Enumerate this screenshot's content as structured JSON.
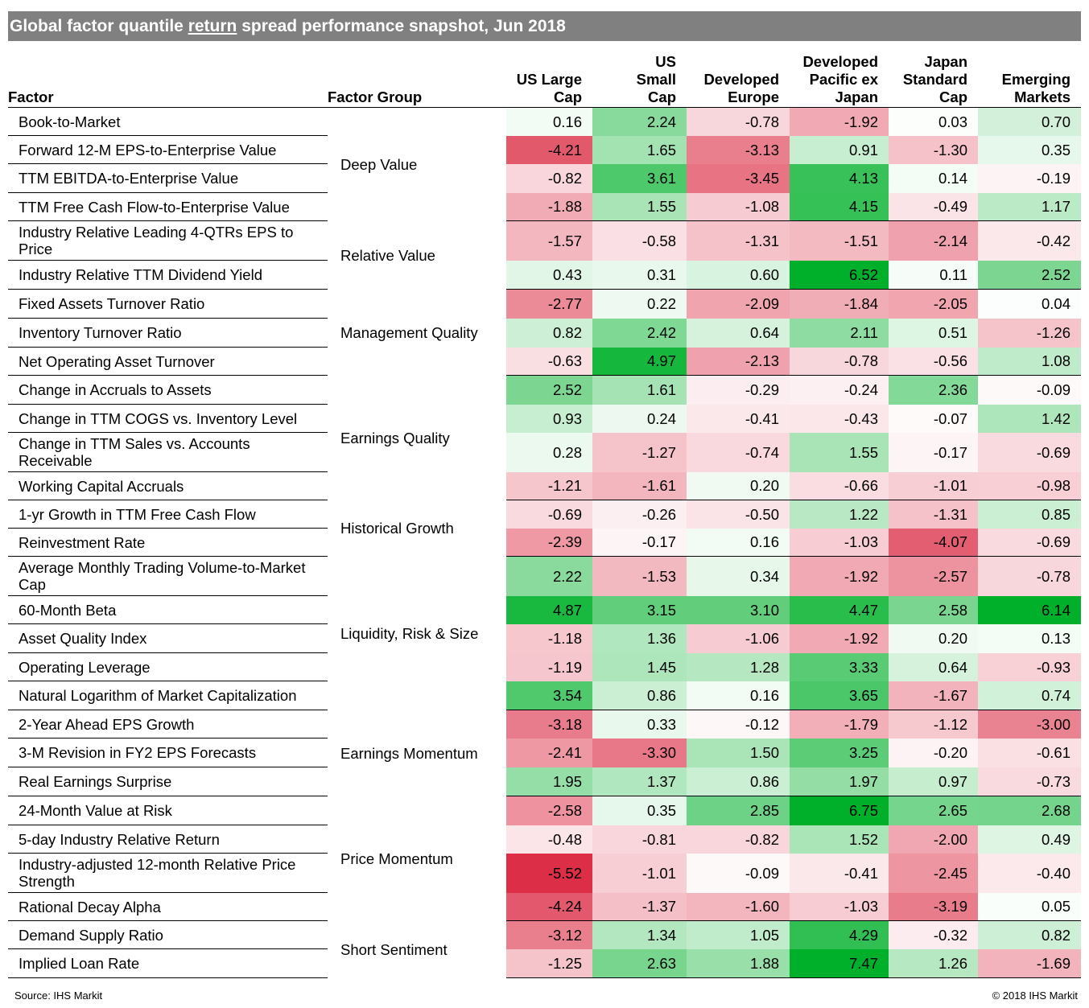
{
  "title": {
    "before": "Global factor quantile ",
    "underlined": "return",
    "after": " spread performance snapshot, Jun 2018"
  },
  "footer": {
    "source": "Source: IHS Markit",
    "copyright": "© 2018 IHS Markit"
  },
  "colors": {
    "negative_max": "#dc2f47",
    "neutral": "#ffffff",
    "positive_max": "#00b02a"
  },
  "chart_data": {
    "type": "table",
    "title": "Global factor quantile return spread performance snapshot, Jun 2018",
    "columns": [
      "Factor",
      "Factor Group",
      "US Large Cap",
      "US Small Cap",
      "Developed Europe",
      "Developed Pacific ex Japan",
      "Japan Standard Cap",
      "Emerging Markets"
    ],
    "markets": [
      "US Large Cap",
      "US Small Cap",
      "Developed Europe",
      "Developed Pacific ex Japan",
      "Japan Standard Cap",
      "Emerging Markets"
    ],
    "groups": [
      {
        "name": "Deep Value",
        "rows": [
          {
            "factor": "Book-to-Market",
            "values": [
              0.16,
              2.24,
              -0.78,
              -1.92,
              0.03,
              0.7
            ]
          },
          {
            "factor": "Forward 12-M EPS-to-Enterprise Value",
            "values": [
              -4.21,
              1.65,
              -3.13,
              0.91,
              -1.3,
              0.35
            ]
          },
          {
            "factor": "TTM EBITDA-to-Enterprise Value",
            "values": [
              -0.82,
              3.61,
              -3.45,
              4.13,
              0.14,
              -0.19
            ]
          },
          {
            "factor": "TTM Free Cash Flow-to-Enterprise Value",
            "values": [
              -1.88,
              1.55,
              -1.08,
              4.15,
              -0.49,
              1.17
            ]
          }
        ]
      },
      {
        "name": "Relative Value",
        "rows": [
          {
            "factor": "Industry Relative Leading 4-QTRs EPS to Price",
            "values": [
              -1.57,
              -0.58,
              -1.31,
              -1.51,
              -2.14,
              -0.42
            ]
          },
          {
            "factor": "Industry Relative TTM Dividend Yield",
            "values": [
              0.43,
              0.31,
              0.6,
              6.52,
              0.11,
              2.52
            ]
          }
        ]
      },
      {
        "name": "Management Quality",
        "rows": [
          {
            "factor": "Fixed Assets Turnover Ratio",
            "values": [
              -2.77,
              0.22,
              -2.09,
              -1.84,
              -2.05,
              0.04
            ]
          },
          {
            "factor": "Inventory Turnover Ratio",
            "values": [
              0.82,
              2.42,
              0.64,
              2.11,
              0.51,
              -1.26
            ]
          },
          {
            "factor": "Net Operating Asset Turnover",
            "values": [
              -0.63,
              4.97,
              -2.13,
              -0.78,
              -0.56,
              1.08
            ]
          }
        ]
      },
      {
        "name": "Earnings Quality",
        "rows": [
          {
            "factor": "Change in Accruals to Assets",
            "values": [
              2.52,
              1.61,
              -0.29,
              -0.24,
              2.36,
              -0.09
            ]
          },
          {
            "factor": "Change in TTM COGS vs. Inventory Level",
            "values": [
              0.93,
              0.24,
              -0.41,
              -0.43,
              -0.07,
              1.42
            ]
          },
          {
            "factor": "Change in TTM Sales vs. Accounts Receivable",
            "values": [
              0.28,
              -1.27,
              -0.74,
              1.55,
              -0.17,
              -0.69
            ]
          },
          {
            "factor": "Working Capital Accruals",
            "values": [
              -1.21,
              -1.61,
              0.2,
              -0.66,
              -1.01,
              -0.98
            ]
          }
        ]
      },
      {
        "name": "Historical Growth",
        "rows": [
          {
            "factor": "1-yr Growth in TTM Free Cash Flow",
            "values": [
              -0.69,
              -0.26,
              -0.5,
              1.22,
              -1.31,
              0.85
            ]
          },
          {
            "factor": "Reinvestment Rate",
            "values": [
              -2.39,
              -0.17,
              0.16,
              -1.03,
              -4.07,
              -0.69
            ]
          }
        ]
      },
      {
        "name": "Liquidity, Risk & Size",
        "rows": [
          {
            "factor": "Average Monthly Trading Volume-to-Market Cap",
            "values": [
              2.22,
              -1.53,
              0.34,
              -1.92,
              -2.57,
              -0.78
            ]
          },
          {
            "factor": "60-Month Beta",
            "values": [
              4.87,
              3.15,
              3.1,
              4.47,
              2.58,
              6.14
            ]
          },
          {
            "factor": "Asset Quality Index",
            "values": [
              -1.18,
              1.36,
              -1.06,
              -1.92,
              0.2,
              0.13
            ]
          },
          {
            "factor": "Operating Leverage",
            "values": [
              -1.19,
              1.45,
              1.28,
              3.33,
              0.64,
              -0.93
            ]
          },
          {
            "factor": "Natural Logarithm of Market Capitalization",
            "values": [
              3.54,
              0.86,
              0.16,
              3.65,
              -1.67,
              0.74
            ]
          }
        ]
      },
      {
        "name": "Earnings Momentum",
        "rows": [
          {
            "factor": "2-Year Ahead EPS Growth",
            "values": [
              -3.18,
              0.33,
              -0.12,
              -1.79,
              -1.12,
              -3.0
            ]
          },
          {
            "factor": "3-M Revision in  FY2 EPS Forecasts",
            "values": [
              -2.41,
              -3.3,
              1.5,
              3.25,
              -0.2,
              -0.61
            ]
          },
          {
            "factor": "Real Earnings Surprise",
            "values": [
              1.95,
              1.37,
              0.86,
              1.97,
              0.97,
              -0.73
            ]
          }
        ]
      },
      {
        "name": "Price Momentum",
        "rows": [
          {
            "factor": "24-Month Value at Risk",
            "values": [
              -2.58,
              0.35,
              2.85,
              6.75,
              2.65,
              2.68
            ]
          },
          {
            "factor": "5-day Industry Relative Return",
            "values": [
              -0.48,
              -0.81,
              -0.82,
              1.52,
              -2.0,
              0.49
            ]
          },
          {
            "factor": "Industry-adjusted 12-month Relative Price Strength",
            "values": [
              -5.52,
              -1.01,
              -0.09,
              -0.41,
              -2.45,
              -0.4
            ]
          },
          {
            "factor": "Rational Decay Alpha",
            "values": [
              -4.24,
              -1.37,
              -1.6,
              -1.03,
              -3.19,
              0.05
            ]
          }
        ]
      },
      {
        "name": "Short Sentiment",
        "rows": [
          {
            "factor": "Demand Supply Ratio",
            "values": [
              -3.12,
              1.34,
              1.05,
              4.29,
              -0.32,
              0.82
            ]
          },
          {
            "factor": "Implied Loan Rate",
            "values": [
              -1.25,
              2.63,
              1.88,
              7.47,
              1.26,
              -1.69
            ]
          }
        ]
      }
    ]
  }
}
